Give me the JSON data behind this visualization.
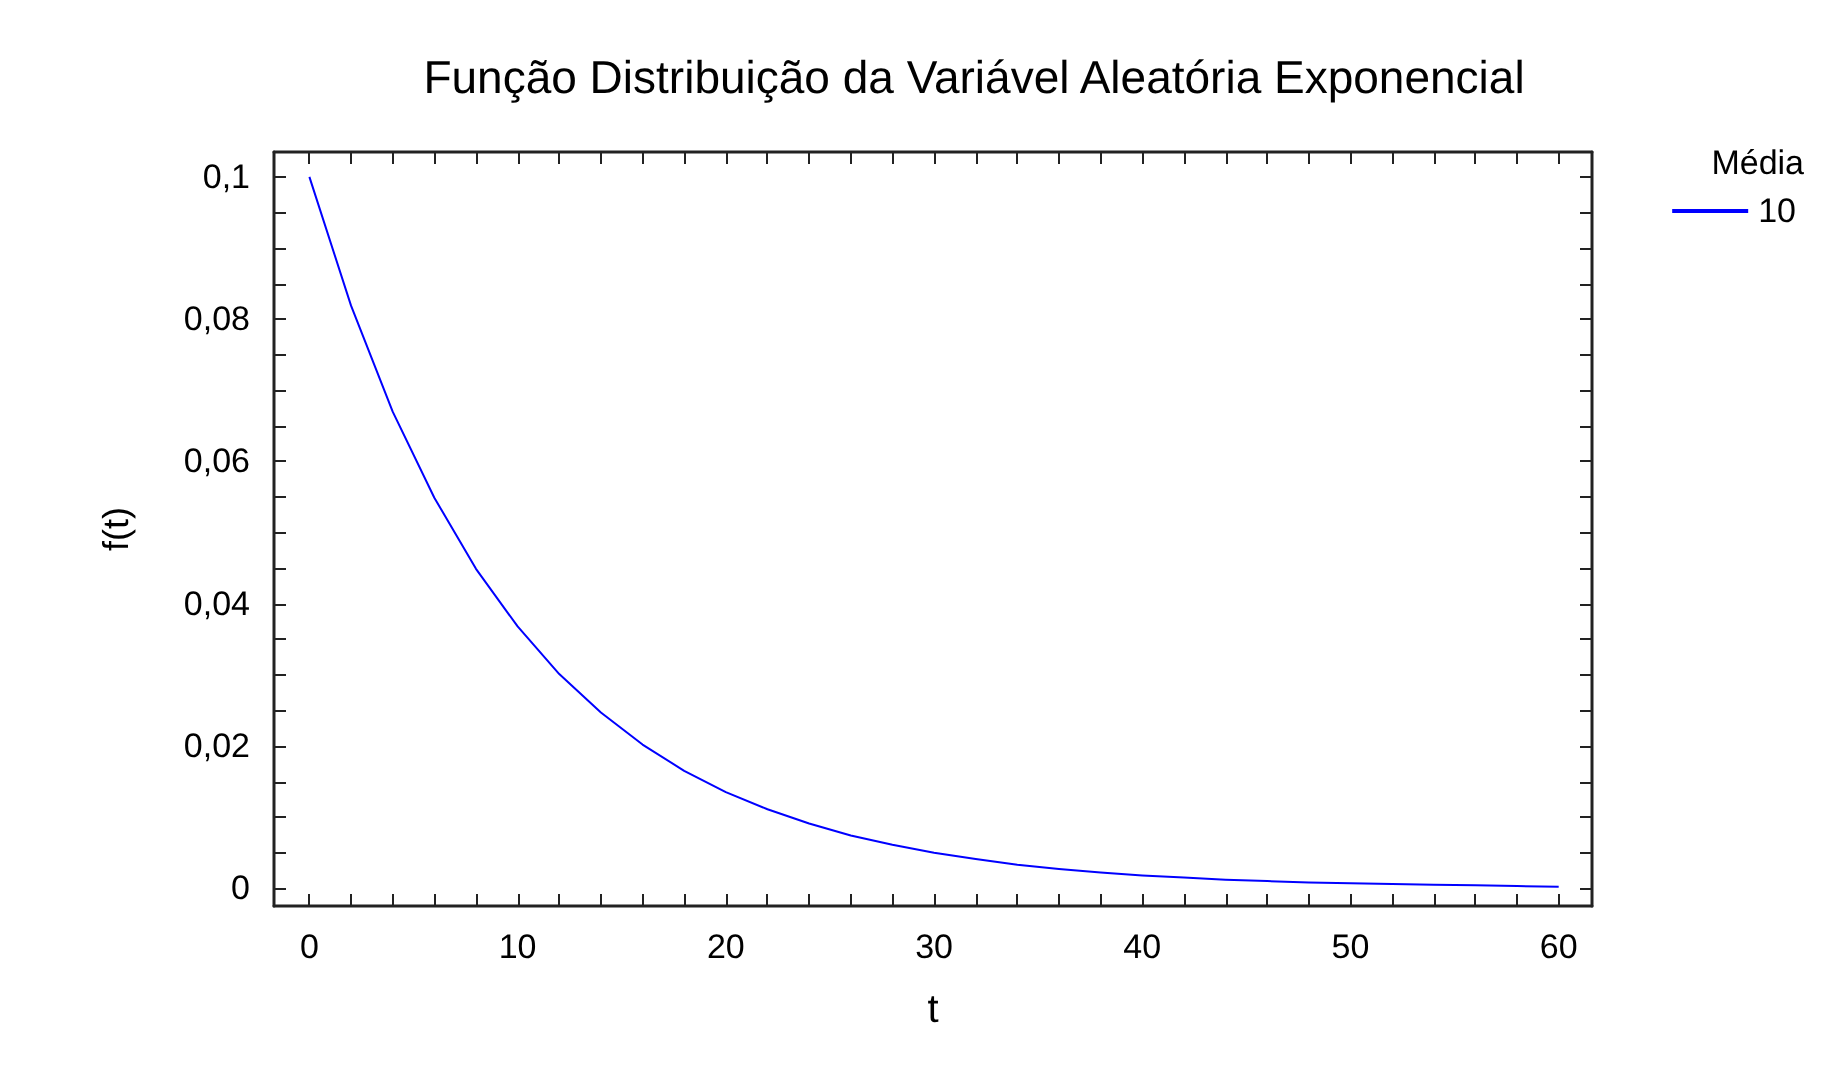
{
  "chart_data": {
    "type": "line",
    "title": "Função Distribuição da Variável Aleatória Exponencial",
    "xlabel": "t",
    "ylabel": "f(t)",
    "legend_title": "Média",
    "legend": "top right",
    "grid": false,
    "marker": "none",
    "line_style": "solid",
    "x": [
      0,
      2,
      4,
      6,
      8,
      10,
      12,
      14,
      16,
      18,
      20,
      22,
      24,
      26,
      28,
      30,
      32,
      34,
      36,
      38,
      40,
      42,
      44,
      46,
      48,
      50,
      52,
      54,
      56,
      58,
      60
    ],
    "series": [
      {
        "name": "10",
        "color": "#0000ff",
        "values": [
          0.1,
          0.0819,
          0.067,
          0.0549,
          0.0449,
          0.0368,
          0.0301,
          0.0247,
          0.0202,
          0.0165,
          0.0135,
          0.0111,
          0.0091,
          0.0074,
          0.0061,
          0.005,
          0.0041,
          0.0033,
          0.0027,
          0.0022,
          0.0018,
          0.0015,
          0.0012,
          0.001,
          0.0008,
          0.0007,
          0.0006,
          0.0005,
          0.0004,
          0.0003,
          0.0002
        ]
      }
    ],
    "xlim": [
      -1.7,
      61.6
    ],
    "ylim": [
      -0.0025,
      0.1035
    ],
    "xticks": [
      0,
      {
        "value": 2,
        "label": null
      },
      {
        "value": 4,
        "label": null
      },
      {
        "value": 6,
        "label": null
      },
      {
        "value": 8,
        "label": null
      },
      10,
      {
        "value": 12,
        "label": null
      },
      {
        "value": 14,
        "label": null
      },
      {
        "value": 16,
        "label": null
      },
      {
        "value": 18,
        "label": null
      },
      20,
      {
        "value": 22,
        "label": null
      },
      {
        "value": 24,
        "label": null
      },
      {
        "value": 26,
        "label": null
      },
      {
        "value": 28,
        "label": null
      },
      30,
      {
        "value": 32,
        "label": null
      },
      {
        "value": 34,
        "label": null
      },
      {
        "value": 36,
        "label": null
      },
      {
        "value": 38,
        "label": null
      },
      40,
      {
        "value": 42,
        "label": null
      },
      {
        "value": 44,
        "label": null
      },
      {
        "value": 46,
        "label": null
      },
      {
        "value": 48,
        "label": null
      },
      50,
      {
        "value": 52,
        "label": null
      },
      {
        "value": 54,
        "label": null
      },
      {
        "value": 56,
        "label": null
      },
      {
        "value": 58,
        "label": null
      },
      60
    ],
    "yticks": [
      0,
      {
        "value": 0.005,
        "label": null
      },
      {
        "value": 0.01,
        "label": null
      },
      {
        "value": 0.015,
        "label": null
      },
      {
        "value": 0.02,
        "label": "0,02"
      },
      {
        "value": 0.025,
        "label": null
      },
      {
        "value": 0.03,
        "label": null
      },
      {
        "value": 0.035,
        "label": null
      },
      {
        "value": 0.04,
        "label": "0,04"
      },
      {
        "value": 0.045,
        "label": null
      },
      {
        "value": 0.05,
        "label": null
      },
      {
        "value": 0.055,
        "label": null
      },
      {
        "value": 0.06,
        "label": "0,06"
      },
      {
        "value": 0.065,
        "label": null
      },
      {
        "value": 0.07,
        "label": null
      },
      {
        "value": 0.075,
        "label": null
      },
      {
        "value": 0.08,
        "label": "0,08"
      },
      {
        "value": 0.085,
        "label": null
      },
      {
        "value": 0.09,
        "label": null
      },
      {
        "value": 0.095,
        "label": null
      },
      {
        "value": 0.1,
        "label": "0,1"
      }
    ]
  }
}
